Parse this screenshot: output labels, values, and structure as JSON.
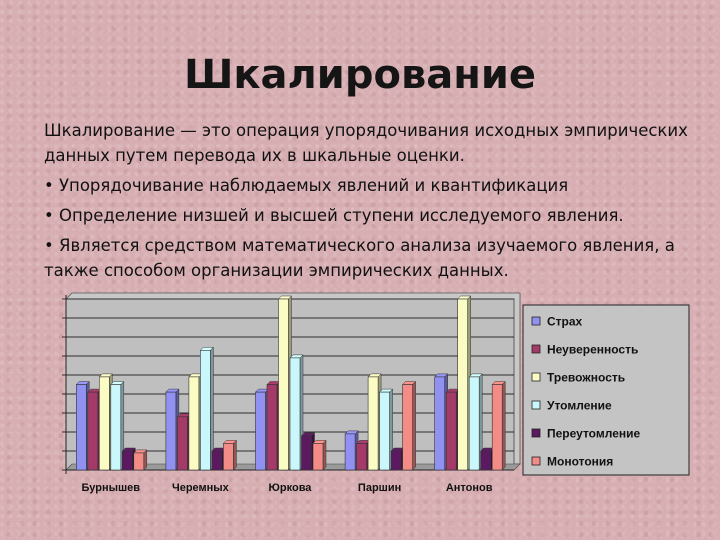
{
  "slide": {
    "title": "Шкалирование",
    "definition_term": "Шкалирование",
    "definition_rest": " — это операция упорядочивания исходных эмпирических данных путем перевода их в шкальные оценки.",
    "bullets": [
      "• Упорядочивание наблюдаемых явлений и квантификация",
      "• Определение низшей и высшей ступени исследуемого явления.",
      "• Является средством математического анализа изучаемого явления, а также способом организации эмпирических данных."
    ]
  },
  "chart_data": {
    "type": "bar",
    "style": "3d-clustered",
    "categories": [
      "Бурнышев",
      "Черемных",
      "Юркова",
      "Паршин",
      "Антонов"
    ],
    "ylim": [
      0,
      9
    ],
    "grid": true,
    "legend_position": "right",
    "series": [
      {
        "name": "Страх",
        "color": "#9191f2",
        "values": [
          4.5,
          4.1,
          4.1,
          1.9,
          4.9
        ]
      },
      {
        "name": "Неуверенность",
        "color": "#a33a67",
        "values": [
          4.1,
          2.8,
          4.5,
          1.4,
          4.1
        ]
      },
      {
        "name": "Тревожность",
        "color": "#fbfbc4",
        "values": [
          4.9,
          4.9,
          9.0,
          4.9,
          9.0
        ]
      },
      {
        "name": "Утомление",
        "color": "#c9f7fb",
        "values": [
          4.5,
          6.3,
          5.9,
          4.1,
          4.9
        ]
      },
      {
        "name": "Переутомление",
        "color": "#5b1a5f",
        "values": [
          1.0,
          1.0,
          1.8,
          1.0,
          1.0
        ]
      },
      {
        "name": "Монотония",
        "color": "#f38b86",
        "values": [
          0.9,
          1.4,
          1.4,
          4.5,
          4.5
        ]
      }
    ]
  }
}
